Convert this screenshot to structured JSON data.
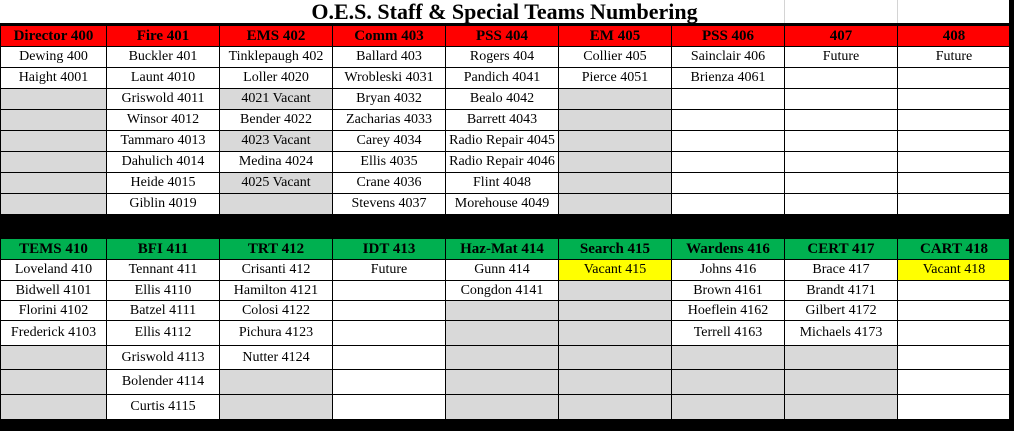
{
  "title": "O.E.S. Staff & Special Teams Numbering",
  "colors": {
    "red_header": "#FF0000",
    "green_header": "#00B050",
    "gray": "#D9D9D9",
    "yellow": "#FFFF00",
    "white": "#FFFFFF"
  },
  "sections": [
    {
      "header_color": "#FF0000",
      "headers": [
        "Director 400",
        "Fire 401",
        "EMS 402",
        "Comm 403",
        "PSS 404",
        "EM 405",
        "PSS 406",
        "407",
        "408"
      ],
      "rows": [
        [
          {
            "t": "Dewing 400"
          },
          {
            "t": "Buckler 401"
          },
          {
            "t": "Tinklepaugh 402"
          },
          {
            "t": "Ballard 403"
          },
          {
            "t": "Rogers 404"
          },
          {
            "t": "Collier 405"
          },
          {
            "t": "Sainclair 406"
          },
          {
            "t": "Future"
          },
          {
            "t": "Future"
          }
        ],
        [
          {
            "t": "Haight 4001"
          },
          {
            "t": "Launt 4010"
          },
          {
            "t": "Loller 4020"
          },
          {
            "t": "Wrobleski 4031"
          },
          {
            "t": "Pandich 4041"
          },
          {
            "t": "Pierce 4051"
          },
          {
            "t": "Brienza 4061"
          },
          {
            "t": ""
          },
          {
            "t": ""
          }
        ],
        [
          {
            "t": "",
            "f": "gray"
          },
          {
            "t": "Griswold 4011"
          },
          {
            "t": "4021 Vacant",
            "f": "gray"
          },
          {
            "t": "Bryan 4032"
          },
          {
            "t": "Bealo 4042"
          },
          {
            "t": "",
            "f": "gray"
          },
          {
            "t": ""
          },
          {
            "t": ""
          },
          {
            "t": ""
          }
        ],
        [
          {
            "t": "",
            "f": "gray"
          },
          {
            "t": "Winsor 4012"
          },
          {
            "t": "Bender 4022"
          },
          {
            "t": "Zacharias 4033"
          },
          {
            "t": "Barrett 4043"
          },
          {
            "t": "",
            "f": "gray"
          },
          {
            "t": ""
          },
          {
            "t": ""
          },
          {
            "t": ""
          }
        ],
        [
          {
            "t": "",
            "f": "gray"
          },
          {
            "t": "Tammaro 4013"
          },
          {
            "t": "4023 Vacant",
            "f": "gray"
          },
          {
            "t": "Carey 4034"
          },
          {
            "t": "Radio Repair 4045"
          },
          {
            "t": "",
            "f": "gray"
          },
          {
            "t": ""
          },
          {
            "t": ""
          },
          {
            "t": ""
          }
        ],
        [
          {
            "t": "",
            "f": "gray"
          },
          {
            "t": "Dahulich 4014"
          },
          {
            "t": "Medina 4024"
          },
          {
            "t": "Ellis 4035"
          },
          {
            "t": "Radio Repair 4046"
          },
          {
            "t": "",
            "f": "gray"
          },
          {
            "t": ""
          },
          {
            "t": ""
          },
          {
            "t": ""
          }
        ],
        [
          {
            "t": "",
            "f": "gray"
          },
          {
            "t": "Heide 4015"
          },
          {
            "t": "4025 Vacant",
            "f": "gray"
          },
          {
            "t": "Crane 4036"
          },
          {
            "t": "Flint 4048"
          },
          {
            "t": "",
            "f": "gray"
          },
          {
            "t": ""
          },
          {
            "t": ""
          },
          {
            "t": ""
          }
        ],
        [
          {
            "t": "",
            "f": "gray"
          },
          {
            "t": "Giblin 4019"
          },
          {
            "t": "",
            "f": "gray"
          },
          {
            "t": "Stevens 4037"
          },
          {
            "t": "Morehouse 4049"
          },
          {
            "t": "",
            "f": "gray"
          },
          {
            "t": ""
          },
          {
            "t": ""
          },
          {
            "t": ""
          }
        ]
      ]
    },
    {
      "header_color": "#00B050",
      "headers": [
        "TEMS 410",
        "BFI 411",
        "TRT 412",
        "IDT 413",
        "Haz-Mat 414",
        "Search 415",
        "Wardens 416",
        "CERT 417",
        "CART 418"
      ],
      "rows": [
        [
          {
            "t": "Loveland 410"
          },
          {
            "t": "Tennant 411"
          },
          {
            "t": "Crisanti 412"
          },
          {
            "t": "Future"
          },
          {
            "t": "Gunn 414"
          },
          {
            "t": "Vacant 415",
            "f": "yellow"
          },
          {
            "t": "Johns 416"
          },
          {
            "t": "Brace 417"
          },
          {
            "t": "Vacant 418",
            "f": "yellow"
          }
        ],
        [
          {
            "t": "Bidwell 4101"
          },
          {
            "t": "Ellis 4110"
          },
          {
            "t": "Hamilton 4121"
          },
          {
            "t": ""
          },
          {
            "t": "Congdon 4141"
          },
          {
            "t": "",
            "f": "gray"
          },
          {
            "t": "Brown 4161"
          },
          {
            "t": "Brandt 4171"
          },
          {
            "t": ""
          }
        ],
        [
          {
            "t": "Florini 4102"
          },
          {
            "t": "Batzel 4111"
          },
          {
            "t": "Colosi 4122"
          },
          {
            "t": ""
          },
          {
            "t": "",
            "f": "gray"
          },
          {
            "t": "",
            "f": "gray"
          },
          {
            "t": "Hoeflein 4162"
          },
          {
            "t": "Gilbert 4172"
          },
          {
            "t": ""
          }
        ],
        [
          {
            "t": "Frederick 4103"
          },
          {
            "t": "Ellis 4112"
          },
          {
            "t": "Pichura 4123"
          },
          {
            "t": ""
          },
          {
            "t": "",
            "f": "gray"
          },
          {
            "t": "",
            "f": "gray"
          },
          {
            "t": "Terrell 4163"
          },
          {
            "t": "Michaels 4173"
          },
          {
            "t": ""
          }
        ],
        [
          {
            "t": "",
            "f": "gray"
          },
          {
            "t": "Griswold 4113"
          },
          {
            "t": "Nutter 4124"
          },
          {
            "t": ""
          },
          {
            "t": "",
            "f": "gray"
          },
          {
            "t": "",
            "f": "gray"
          },
          {
            "t": "",
            "f": "gray"
          },
          {
            "t": "",
            "f": "gray"
          },
          {
            "t": ""
          }
        ],
        [
          {
            "t": "",
            "f": "gray"
          },
          {
            "t": "Bolender 4114"
          },
          {
            "t": "",
            "f": "gray"
          },
          {
            "t": ""
          },
          {
            "t": "",
            "f": "gray"
          },
          {
            "t": "",
            "f": "gray"
          },
          {
            "t": "",
            "f": "gray"
          },
          {
            "t": "",
            "f": "gray"
          },
          {
            "t": ""
          }
        ],
        [
          {
            "t": "",
            "f": "gray"
          },
          {
            "t": "Curtis 4115"
          },
          {
            "t": "",
            "f": "gray"
          },
          {
            "t": ""
          },
          {
            "t": "",
            "f": "gray"
          },
          {
            "t": "",
            "f": "gray"
          },
          {
            "t": "",
            "f": "gray"
          },
          {
            "t": "",
            "f": "gray"
          },
          {
            "t": ""
          }
        ]
      ]
    }
  ]
}
